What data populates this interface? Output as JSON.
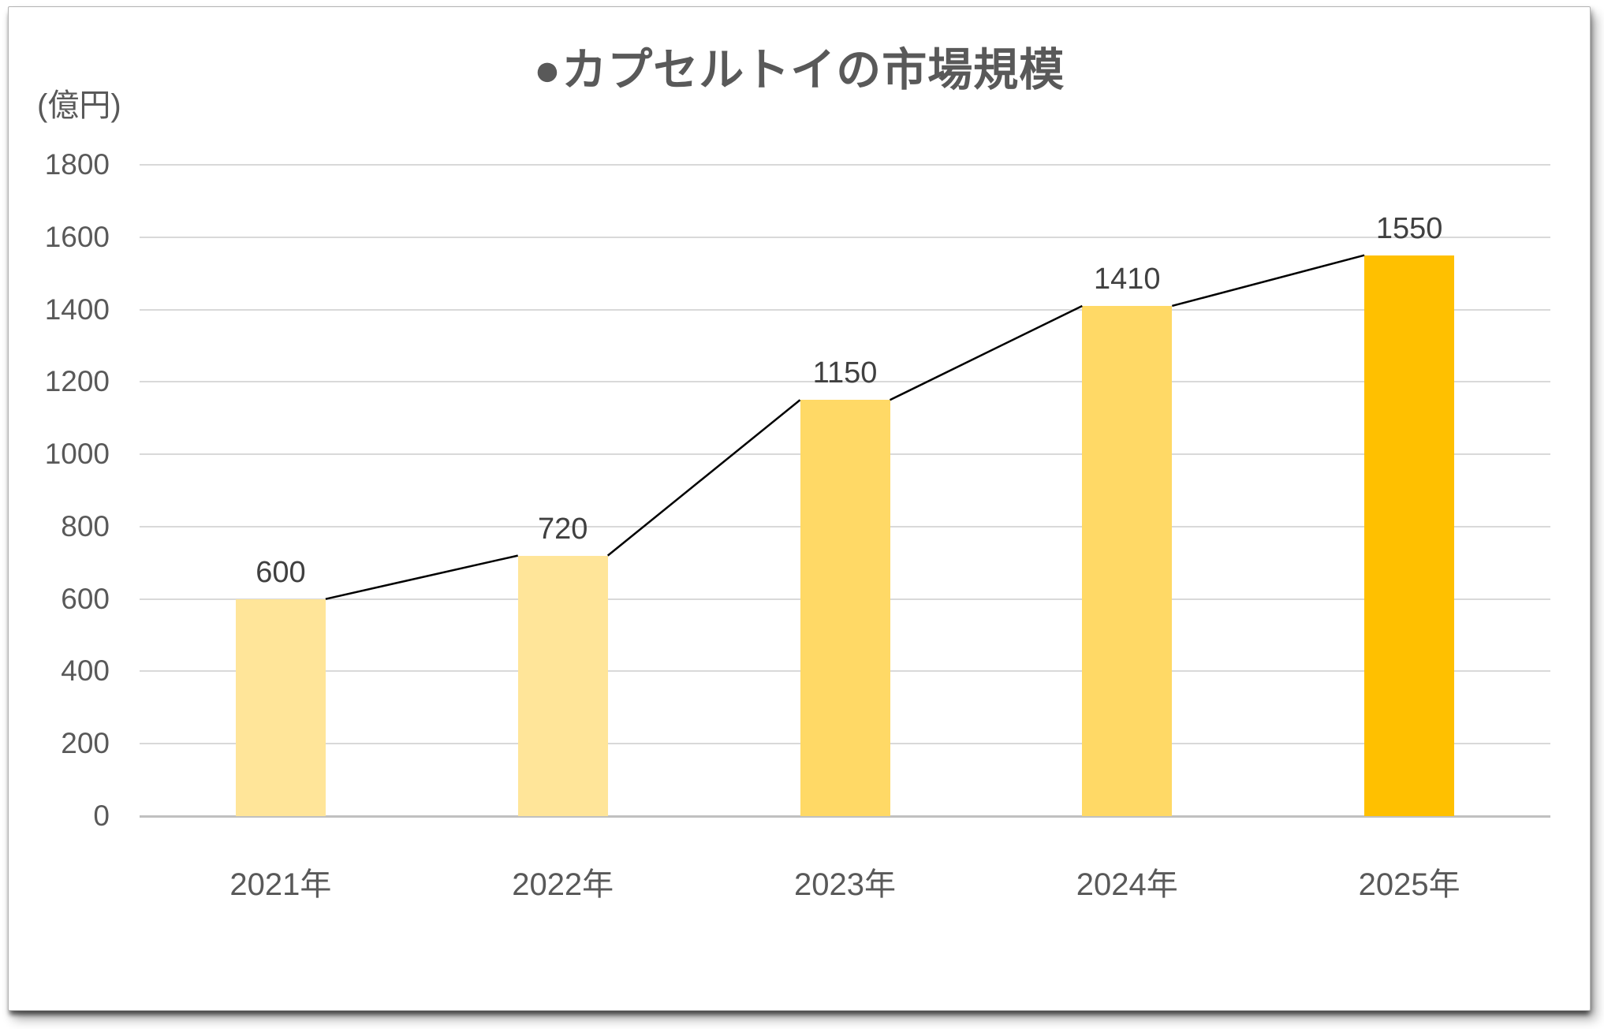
{
  "chart_data": {
    "type": "bar",
    "line_overlay": true,
    "title": "●カプセルトイの市場規模",
    "ylabel": "(億円)",
    "categories": [
      "2021年",
      "2022年",
      "2023年",
      "2024年",
      "2025年"
    ],
    "values": [
      600,
      720,
      1150,
      1410,
      1550
    ],
    "bar_colors": [
      "#FFE599",
      "#FFE599",
      "#FFD966",
      "#FFD966",
      "#FFC000"
    ],
    "ylim": [
      0,
      1800
    ],
    "ytick_step": 200,
    "grid": true,
    "legend": "none",
    "colors": {
      "grid": "#D9D9D9",
      "zero_axis": "#C0C0C0",
      "tick_text": "#595959",
      "category_text": "#595959",
      "data_label_text": "#404040",
      "title_text": "#595959",
      "line": "#000000"
    }
  }
}
